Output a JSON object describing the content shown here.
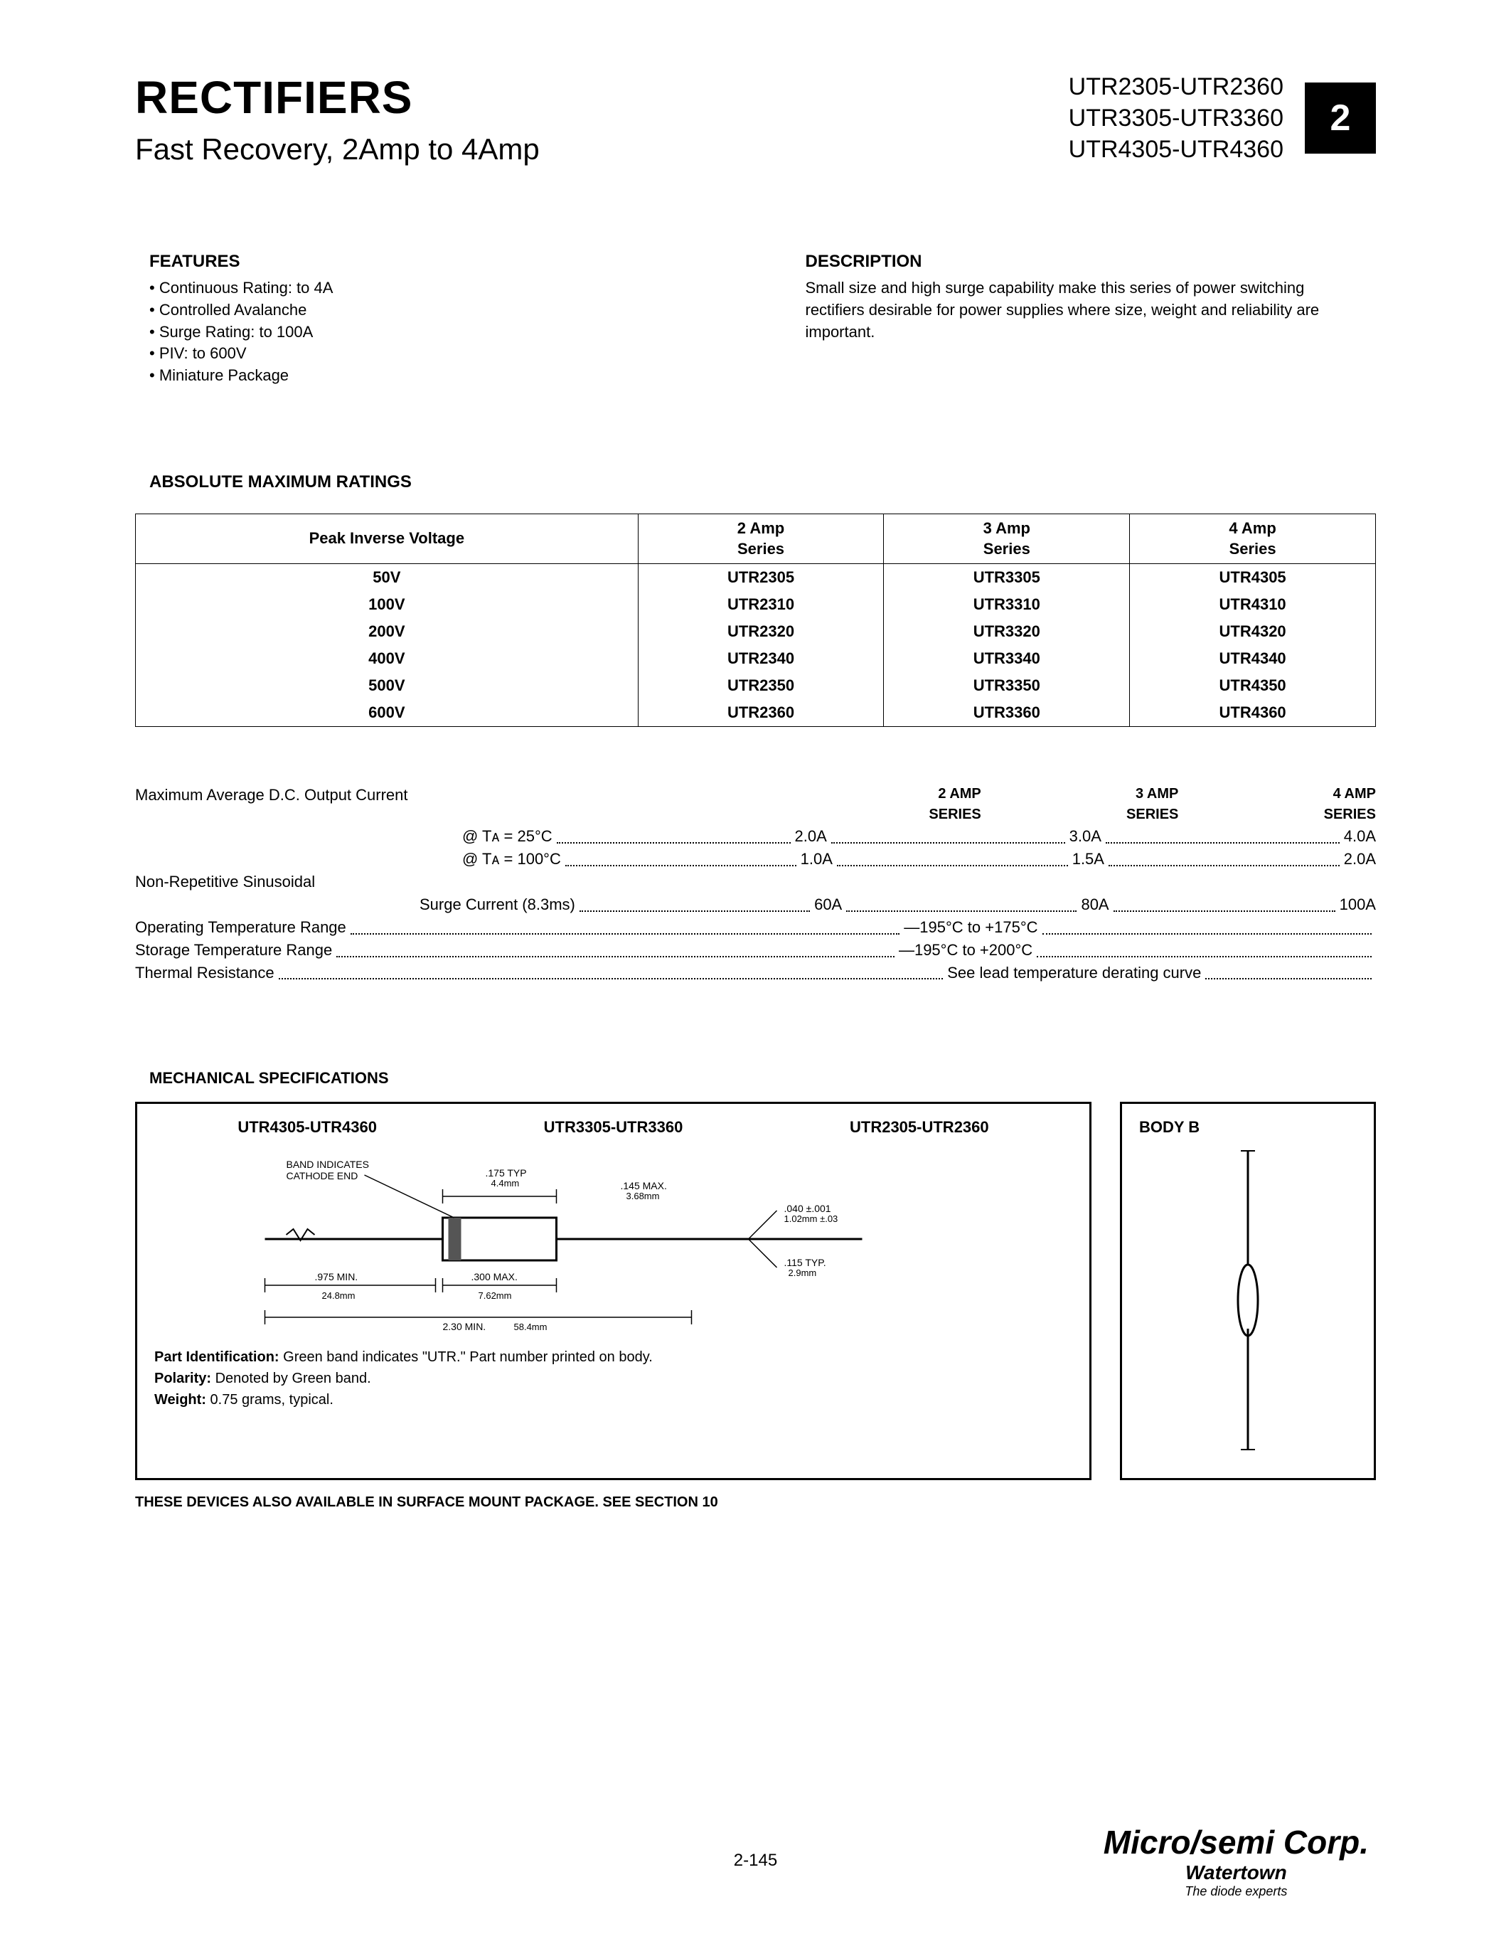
{
  "header": {
    "title": "RECTIFIERS",
    "subtitle": "Fast Recovery, 2Amp to 4Amp",
    "part_lines": [
      "UTR2305-UTR2360",
      "UTR3305-UTR3360",
      "UTR4305-UTR4360"
    ],
    "section_number": "2"
  },
  "features": {
    "heading": "FEATURES",
    "items": [
      "Continuous Rating: to 4A",
      "Controlled Avalanche",
      "Surge Rating: to 100A",
      "PIV: to 600V",
      "Miniature Package"
    ]
  },
  "description": {
    "heading": "DESCRIPTION",
    "text": "Small size and high surge capability make this series of power switching rectifiers desirable for power supplies where size, weight and reliability are important."
  },
  "ratings": {
    "heading": "ABSOLUTE MAXIMUM RATINGS",
    "columns": [
      "Peak Inverse Voltage",
      "2 Amp\nSeries",
      "3 Amp\nSeries",
      "4 Amp\nSeries"
    ],
    "rows": [
      [
        "50V",
        "UTR2305",
        "UTR3305",
        "UTR4305"
      ],
      [
        "100V",
        "UTR2310",
        "UTR3310",
        "UTR4310"
      ],
      [
        "200V",
        "UTR2320",
        "UTR3320",
        "UTR4320"
      ],
      [
        "400V",
        "UTR2340",
        "UTR3340",
        "UTR4340"
      ],
      [
        "500V",
        "UTR2350",
        "UTR3350",
        "UTR4350"
      ],
      [
        "600V",
        "UTR2360",
        "UTR3360",
        "UTR4360"
      ]
    ]
  },
  "specs": {
    "col_headers": [
      "2 AMP SERIES",
      "3 AMP SERIES",
      "4 AMP SERIES"
    ],
    "max_dc_label": "Maximum Average D.C. Output Current",
    "ta25_label": "@ Tᴀ = 25°C",
    "ta25_vals": [
      "2.0A",
      "3.0A",
      "4.0A"
    ],
    "ta100_label": "@ Tᴀ = 100°C",
    "ta100_vals": [
      "1.0A",
      "1.5A",
      "2.0A"
    ],
    "nonrep_label": "Non-Repetitive Sinusoidal",
    "surge_label": "Surge Current (8.3ms)",
    "surge_vals": [
      "60A",
      "80A",
      "100A"
    ],
    "op_temp_label": "Operating Temperature Range",
    "op_temp_val": "—195°C to +175°C",
    "storage_temp_label": "Storage Temperature Range",
    "storage_temp_val": "—195°C to +200°C",
    "thermal_label": "Thermal Resistance",
    "thermal_val": "See lead temperature derating curve"
  },
  "mechanical": {
    "heading": "MECHANICAL SPECIFICATIONS",
    "titles": [
      "UTR4305-UTR4360",
      "UTR3305-UTR3360",
      "UTR2305-UTR2360"
    ],
    "body_label": "BODY B",
    "diagram_labels": {
      "band": "BAND INDICATES\nCATHODE END",
      "d175": ".175 TYP\n4.4mm",
      "d145": ".145 MAX.\n3.68mm",
      "d040": ".040 ±.001\n1.02mm ±.03",
      "d115": ".115 TYP.\n2.9mm",
      "d975": ".975 MIN.\n24.8mm",
      "d300": ".300 MAX.\n7.62mm",
      "d230": "2.30 MIN.\n58.4mm"
    },
    "notes": {
      "part_id_label": "Part Identification:",
      "part_id_text": " Green band indicates \"UTR.\" Part number printed on body.",
      "polarity_label": "Polarity:",
      "polarity_text": " Denoted by Green band.",
      "weight_label": "Weight:",
      "weight_text": " 0.75 grams, typical."
    },
    "surface_note": "THESE DEVICES ALSO AVAILABLE IN SURFACE MOUNT PACKAGE. SEE SECTION 10"
  },
  "footer": {
    "page": "2-145",
    "corp_main": "Micro/semi Corp.",
    "corp_sub": "Watertown",
    "corp_tag": "The diode experts"
  }
}
